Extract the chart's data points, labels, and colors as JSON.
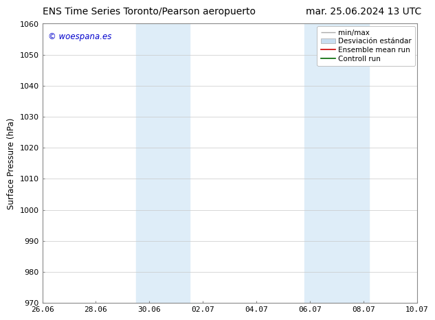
{
  "title_left": "ENS Time Series Toronto/Pearson aeropuerto",
  "title_right": "mar. 25.06.2024 13 UTC",
  "ylabel": "Surface Pressure (hPa)",
  "watermark": "© woespana.es",
  "watermark_color": "#0000cc",
  "ylim": [
    970,
    1060
  ],
  "yticks": [
    970,
    980,
    990,
    1000,
    1010,
    1020,
    1030,
    1040,
    1050,
    1060
  ],
  "xtick_labels": [
    "26.06",
    "28.06",
    "30.06",
    "02.07",
    "04.07",
    "06.07",
    "08.07",
    "10.07"
  ],
  "xmin": 0,
  "xmax": 14,
  "xtick_positions": [
    0,
    2,
    4,
    6,
    8,
    10,
    12,
    14
  ],
  "shaded_bands": [
    {
      "xstart": 3.5,
      "xend": 5.5,
      "color": "#deedf8"
    },
    {
      "xstart": 9.8,
      "xend": 12.2,
      "color": "#deedf8"
    }
  ],
  "bg_color": "#ffffff",
  "plot_bg_color": "#ffffff",
  "grid_color": "#c8c8c8",
  "title_fontsize": 10,
  "label_fontsize": 8.5,
  "tick_fontsize": 8,
  "watermark_fontsize": 8.5,
  "legend_fontsize": 7.5
}
